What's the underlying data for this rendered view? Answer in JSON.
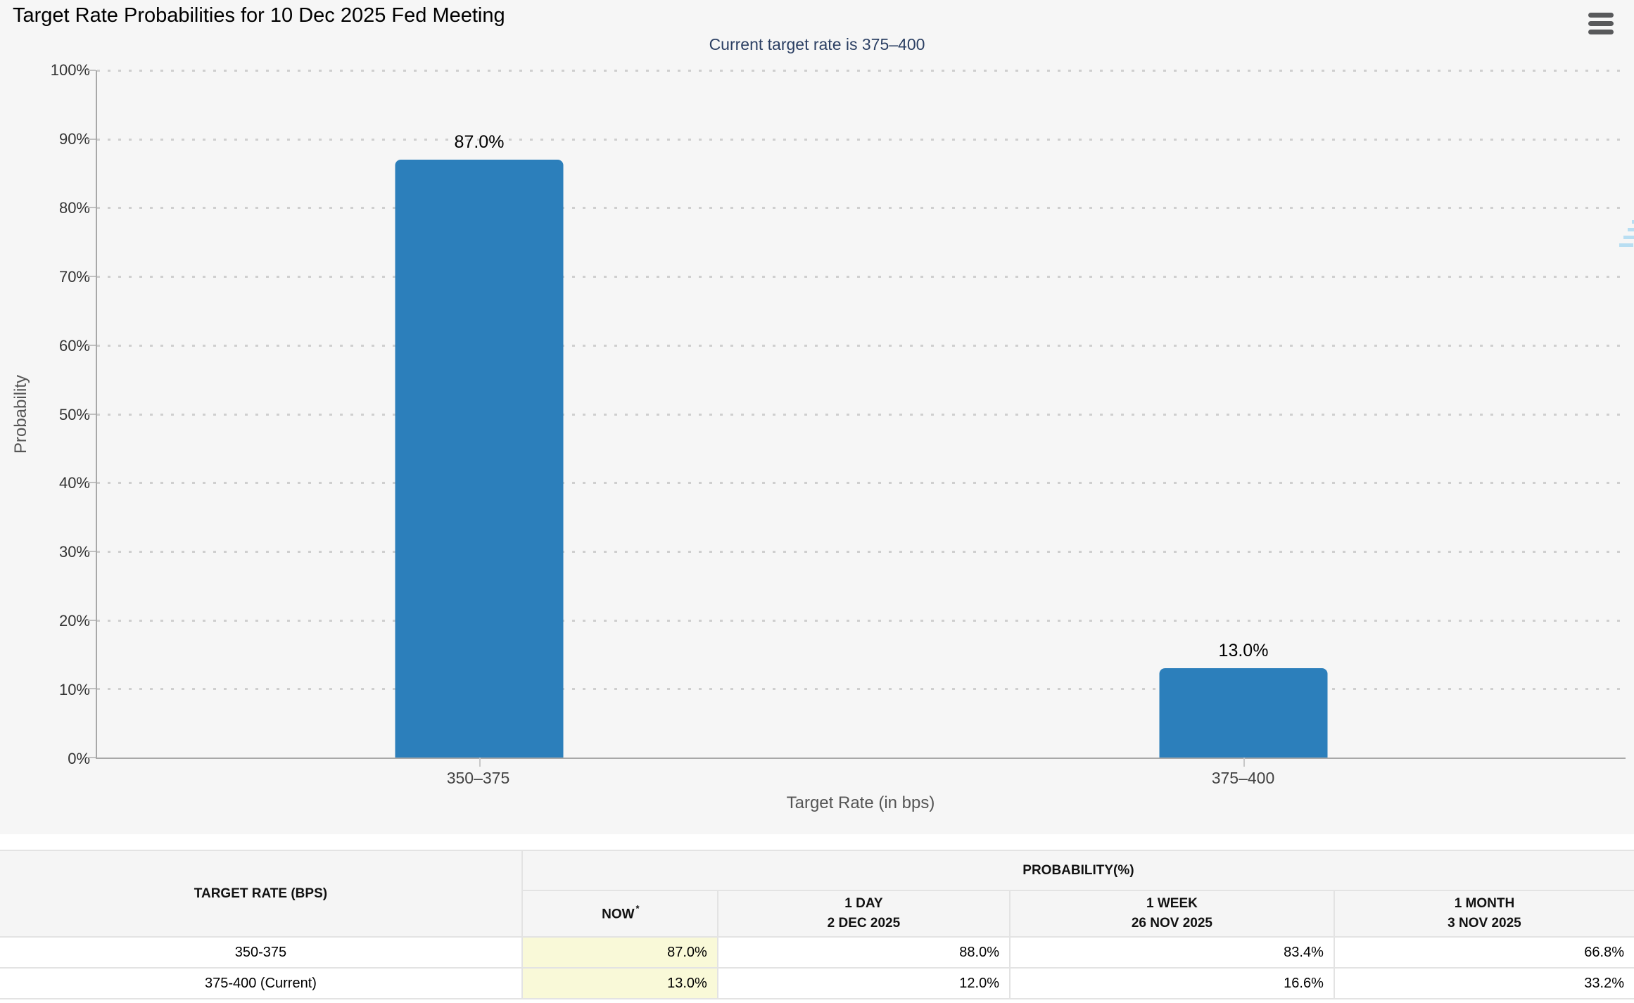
{
  "chart_data": {
    "type": "bar",
    "title": "Target Rate Probabilities for 10 Dec 2025 Fed Meeting",
    "subtitle": "Current target rate is 375–400",
    "xlabel": "Target Rate (in bps)",
    "ylabel": "Probability",
    "categories": [
      "350–375",
      "375–400"
    ],
    "values": [
      87.0,
      13.0
    ],
    "value_labels": [
      "87.0%",
      "13.0%"
    ],
    "ylim": [
      0,
      100
    ],
    "ytick_step": 10,
    "ytick_suffix": "%",
    "grid": "horizontal dotted",
    "legend": "none",
    "bar_color": "#2c7fbb",
    "subtitle_color": "#2b3f63",
    "highlight_color": "#f9f9d8"
  },
  "icons": {
    "menu": "hamburger-three-bars",
    "watermark_letter": "Q"
  },
  "table": {
    "col0_header": "TARGET RATE (BPS)",
    "group_header": "PROBABILITY(%)",
    "columns": [
      {
        "label": "NOW",
        "asterisk": "*",
        "sublabel": ""
      },
      {
        "label": "1 DAY",
        "sublabel": "2 DEC 2025"
      },
      {
        "label": "1 WEEK",
        "sublabel": "26 NOV 2025"
      },
      {
        "label": "1 MONTH",
        "sublabel": "3 NOV 2025"
      }
    ],
    "rows": [
      {
        "rate": "350-375",
        "now": "87.0%",
        "day": "88.0%",
        "week": "83.4%",
        "month": "66.8%"
      },
      {
        "rate": "375-400 (Current)",
        "now": "13.0%",
        "day": "12.0%",
        "week": "16.6%",
        "month": "33.2%"
      }
    ]
  }
}
